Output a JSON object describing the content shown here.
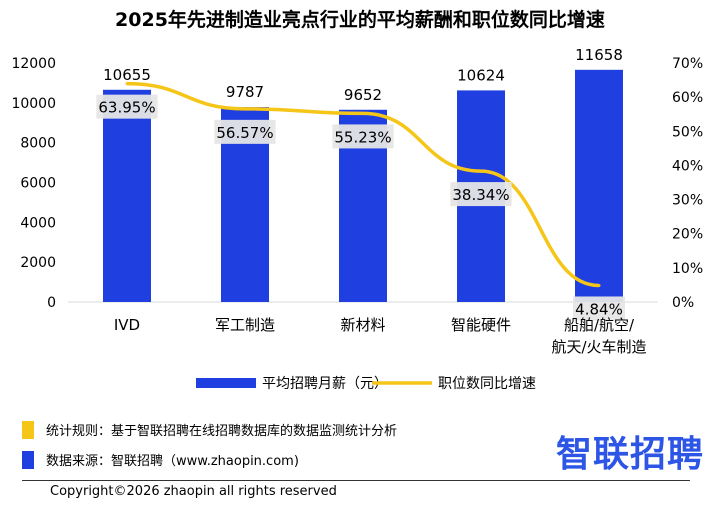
{
  "chart_data": {
    "type": "bar+line",
    "title": "2025年先进制造业亮点行业的平均薪酬和职位数同比增速",
    "categories": [
      "IVD",
      "军工制造",
      "新材料",
      "智能硬件",
      "船舶/航空/\n航天/火车制造"
    ],
    "series": [
      {
        "name": "平均招聘月薪（元）",
        "type": "bar",
        "axis": "left",
        "color": "#1f3fe0",
        "values": [
          10655,
          9787,
          9652,
          10624,
          11658
        ]
      },
      {
        "name": "职位数同比增速",
        "type": "line",
        "axis": "right",
        "color": "#f5c518",
        "values": [
          63.95,
          56.57,
          55.23,
          38.34,
          4.84
        ],
        "labels": [
          "63.95%",
          "56.57%",
          "55.23%",
          "38.34%",
          "4.84%"
        ]
      }
    ],
    "left_axis": {
      "ylim": [
        0,
        12000
      ],
      "ticks": [
        0,
        2000,
        4000,
        6000,
        8000,
        10000,
        12000
      ]
    },
    "right_axis": {
      "ylim": [
        0,
        70
      ],
      "ticks": [
        "0%",
        "10%",
        "20%",
        "30%",
        "40%",
        "50%",
        "60%",
        "70%"
      ]
    },
    "legend_position": "bottom",
    "grid": false
  },
  "notes": {
    "rule": "统计规则：基于智联招聘在线招聘数据库的数据监测统计分析",
    "source": "数据来源：智联招聘（www.zhaopin.com)",
    "rule_color": "#f5c518",
    "source_color": "#1f3fe0"
  },
  "brand": "智联招聘",
  "copyright": "Copyright©2026 zhaopin all rights reserved"
}
